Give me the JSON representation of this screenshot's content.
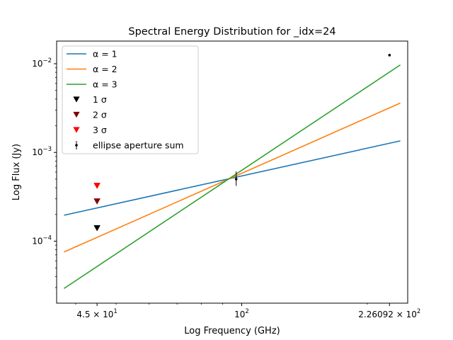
{
  "chart_data": {
    "type": "line",
    "title": "Spectral Energy Distribution for _idx=24",
    "xlabel": "Log Frequency (GHz)",
    "ylabel": "Log Flux (Jy)",
    "xscale": "log",
    "yscale": "log",
    "xlim": [
      36.0,
      250.0
    ],
    "ylim": [
      2e-05,
      0.018
    ],
    "grid": false,
    "legend_position": "top-left",
    "x_ticks": [
      {
        "value": 45,
        "label": "4.5 × 10",
        "exp": "1"
      },
      {
        "value": 100,
        "label": "10",
        "exp": "2"
      },
      {
        "value": 226.092,
        "label": "2.26092 × 10",
        "exp": "2"
      }
    ],
    "y_ticks": [
      {
        "value": 0.0001,
        "label": "10",
        "exp": "−4"
      },
      {
        "value": 0.001,
        "label": "10",
        "exp": "−3"
      },
      {
        "value": 0.01,
        "label": "10",
        "exp": "−2"
      }
    ],
    "series": [
      {
        "name": "α = 1",
        "color": "#1f77b4",
        "x": [
          37.5,
          240.0
        ],
        "y": [
          0.000196,
          0.00135
        ]
      },
      {
        "name": "α = 2",
        "color": "#ff7f0e",
        "x": [
          37.5,
          240.0
        ],
        "y": [
          7.55e-05,
          0.0036
        ]
      },
      {
        "name": "α = 3",
        "color": "#2ca02c",
        "x": [
          37.5,
          240.0
        ],
        "y": [
          2.93e-05,
          0.0097
        ]
      }
    ],
    "upper_limits": [
      {
        "name": "1 σ",
        "color": "#000000",
        "x": 45,
        "y": 0.00014
      },
      {
        "name": "2 σ",
        "color": "#800000",
        "x": 45,
        "y": 0.00028
      },
      {
        "name": "3 σ",
        "color": "#ff0000",
        "x": 45,
        "y": 0.00042
      }
    ],
    "measurement": {
      "name": "ellipse aperture sum",
      "color": "#000000",
      "points": [
        {
          "x": 97,
          "y": 0.0005,
          "yerr_low": 0.00042,
          "yerr_high": 0.00061
        },
        {
          "x": 226.092,
          "y": 0.0125,
          "yerr_low": 0.0125,
          "yerr_high": 0.0125
        }
      ]
    }
  }
}
